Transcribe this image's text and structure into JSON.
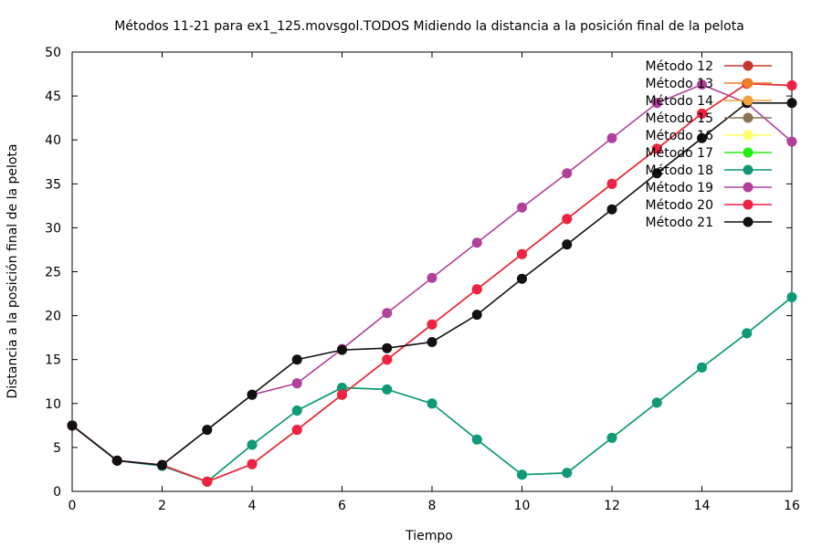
{
  "chart_data": {
    "type": "line",
    "title": "Métodos 11-21 para ex1_125.movsgol.TODOS Midiendo la distancia a la posición final de la pelota",
    "xlabel": "Tiempo",
    "ylabel": "Distancia a la posición final de la pelota",
    "xlim": [
      0,
      16
    ],
    "ylim": [
      0,
      50
    ],
    "xticks": [
      0,
      2,
      4,
      6,
      8,
      10,
      12,
      14,
      16
    ],
    "yticks": [
      0,
      5,
      10,
      15,
      20,
      25,
      30,
      35,
      40,
      45,
      50
    ],
    "grid": false,
    "legend_position": "top-right",
    "x": [
      0,
      1,
      2,
      3,
      4,
      5,
      6,
      7,
      8,
      9,
      10,
      11,
      12,
      13,
      14,
      15,
      16
    ],
    "series": [
      {
        "name": "Método 12",
        "color": "#c0392b",
        "values": [
          7.5,
          3.5,
          3.0,
          1.1,
          3.1,
          7.0,
          11.0,
          15.0,
          19.0,
          23.0,
          27.0,
          31.0,
          35.0,
          39.0,
          43.0,
          46.4,
          46.2
        ]
      },
      {
        "name": "Método 13",
        "color": "#f07f2a",
        "values": [
          7.5,
          3.5,
          3.0,
          1.1,
          3.1,
          7.0,
          11.0,
          15.0,
          19.0,
          23.0,
          27.0,
          31.0,
          35.0,
          39.0,
          43.0,
          46.4,
          46.2
        ]
      },
      {
        "name": "Método 14",
        "color": "#f2a23a",
        "values": [
          7.5,
          3.5,
          3.0,
          1.1,
          3.1,
          7.0,
          11.0,
          15.0,
          19.0,
          23.0,
          27.0,
          31.0,
          35.0,
          39.0,
          43.0,
          46.4,
          46.2
        ]
      },
      {
        "name": "Método 15",
        "color": "#8b7355",
        "values": [
          7.5,
          3.5,
          3.0,
          1.1,
          3.1,
          7.0,
          11.0,
          15.0,
          19.0,
          23.0,
          27.0,
          31.0,
          35.0,
          39.0,
          43.0,
          46.4,
          46.2
        ]
      },
      {
        "name": "Método 16",
        "color": "#ffff66",
        "values": [
          7.5,
          3.5,
          3.0,
          1.1,
          3.1,
          7.0,
          11.0,
          15.0,
          19.0,
          23.0,
          27.0,
          31.0,
          35.0,
          39.0,
          43.0,
          46.4,
          46.2
        ]
      },
      {
        "name": "Método 17",
        "color": "#22ee11",
        "values": [
          7.5,
          3.5,
          2.9,
          1.1,
          5.3,
          9.2,
          11.8,
          11.6,
          10.0,
          5.9,
          1.9,
          2.1,
          6.1,
          10.1,
          14.1,
          18.0,
          22.1
        ]
      },
      {
        "name": "Método 18",
        "color": "#119977",
        "values": [
          7.5,
          3.5,
          2.9,
          1.1,
          5.3,
          9.2,
          11.8,
          11.6,
          10.0,
          5.9,
          1.9,
          2.1,
          6.1,
          10.1,
          14.1,
          18.0,
          22.1
        ]
      },
      {
        "name": "Método 19",
        "color": "#b0409a",
        "values": [
          7.5,
          3.5,
          3.0,
          7.0,
          11.0,
          12.3,
          16.2,
          20.3,
          24.3,
          28.3,
          32.3,
          36.2,
          40.2,
          44.2,
          46.3,
          44.2,
          39.8
        ]
      },
      {
        "name": "Método 20",
        "color": "#ee2244",
        "values": [
          7.5,
          3.5,
          3.0,
          1.1,
          3.1,
          7.0,
          11.0,
          15.0,
          19.0,
          23.0,
          27.0,
          31.0,
          35.0,
          39.0,
          43.0,
          46.4,
          46.2
        ]
      },
      {
        "name": "Método 21",
        "color": "#111111",
        "values": [
          7.5,
          3.5,
          3.0,
          7.0,
          11.0,
          15.0,
          16.1,
          16.3,
          17.0,
          20.1,
          24.2,
          28.1,
          32.1,
          36.2,
          40.2,
          44.2,
          44.2
        ]
      }
    ]
  }
}
